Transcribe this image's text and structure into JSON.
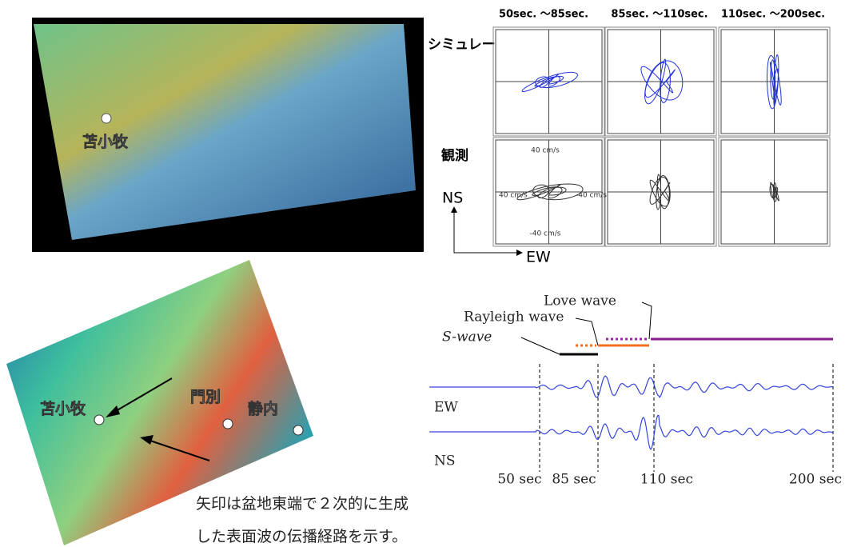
{
  "top_map": {
    "label": "苫小牧"
  },
  "bottom_map": {
    "labels": [
      "苫小牧",
      "門別",
      "静内"
    ]
  },
  "orbit_panels": {
    "windows": [
      "50sec. ～85sec.",
      "85sec. ～110sec.",
      "110sec. ～200sec."
    ],
    "rows": [
      "シミュレーション",
      "観測"
    ],
    "axis_labels": {
      "top": "40 cm/s",
      "left": "40 cm/s",
      "right": "-40 cm/s",
      "bottom": "-40 cm/s"
    },
    "ns": "NS",
    "ew": "EW"
  },
  "waveforms": {
    "phases": [
      "Love wave",
      "Rayleigh wave",
      "S-wave"
    ],
    "traces": [
      "EW",
      "NS"
    ],
    "time_labels": [
      "50 sec",
      "85 sec",
      "110 sec",
      "200 sec"
    ]
  },
  "caption": [
    "矢印は盆地東端で２次的に生成",
    "した表面波の伝播経路を示す。"
  ]
}
